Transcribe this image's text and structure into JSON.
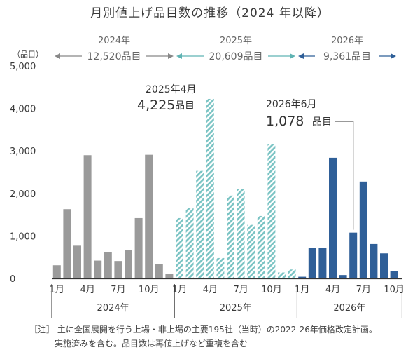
{
  "chart_data": {
    "type": "bar",
    "title": "月別値上げ品目数の推移（2024 年以降）",
    "y_unit": "（品目）",
    "ylim": [
      0,
      5000
    ],
    "yticks": [
      0,
      1000,
      2000,
      3000,
      4000,
      5000
    ],
    "ytick_labels": [
      "0",
      "1,000",
      "2,000",
      "3,000",
      "4,000",
      "5,000"
    ],
    "x_tick_labels": [
      "1月",
      "4月",
      "7月",
      "10月"
    ],
    "x_tick_months": [
      1,
      4,
      7,
      10
    ],
    "grid": false,
    "series": [
      {
        "year_label": "2024年",
        "total_year": "2024年",
        "total_count": "12,520品目",
        "color": "#9a9a9a",
        "pattern": "solid",
        "values": [
          310,
          1630,
          770,
          2900,
          420,
          620,
          410,
          660,
          1420,
          2910,
          340,
          110
        ]
      },
      {
        "year_label": "2025年",
        "total_year": "2025年",
        "total_count": "20,609品目",
        "color": "#7bc4c4",
        "pattern": "hatched",
        "values": [
          1420,
          1660,
          2530,
          4225,
          480,
          1950,
          2100,
          1260,
          1470,
          3160,
          140,
          210
        ]
      },
      {
        "year_label": "2026年",
        "total_year": "2026年",
        "total_count": "9,361品目",
        "color": "#2f5f98",
        "pattern": "solid",
        "values": [
          40,
          720,
          720,
          2840,
          80,
          1078,
          2280,
          810,
          590,
          180
        ]
      }
    ],
    "annotations": [
      {
        "label": "2025年4月",
        "value_label": "4,225",
        "unit": "品目"
      },
      {
        "label": "2026年6月",
        "value_label": "1,078",
        "unit": "品目"
      }
    ]
  },
  "notes": {
    "line1": "［注］ 主に全国展開を行う上場・非上場の主要195社（当時）の2022-26年価格改定計画。",
    "line2": "実施済みを含む。品目数は再値上げなど重複を含む"
  }
}
